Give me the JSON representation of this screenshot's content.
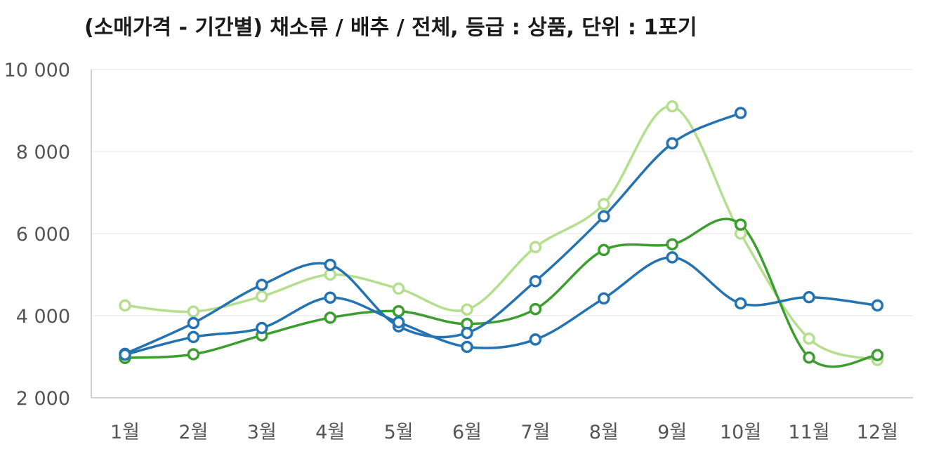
{
  "chart_data": {
    "type": "line",
    "title": "(소매가격 - 기간별) 채소류 / 배추 / 전체, 등급 : 상품, 단위 : 1포기",
    "xlabel": "",
    "ylabel": "",
    "categories": [
      "1월",
      "2월",
      "3월",
      "4월",
      "5월",
      "6월",
      "7월",
      "8월",
      "9월",
      "10월",
      "11월",
      "12월"
    ],
    "yticks": [
      "2 000",
      "4 000",
      "6 000",
      "8 000",
      "10 000"
    ],
    "ylim": [
      2000,
      10000
    ],
    "grid": true,
    "legend": "none",
    "series": [
      {
        "color": "#b5de8e",
        "values": [
          4250,
          4100,
          4470,
          5000,
          4660,
          4150,
          5670,
          6720,
          9100,
          6000,
          3440,
          2920
        ]
      },
      {
        "color": "#3b9e2e",
        "values": [
          2970,
          3060,
          3520,
          3950,
          4110,
          3800,
          4160,
          5600,
          5740,
          6220,
          2980,
          3040
        ]
      },
      {
        "color": "#2373b3",
        "values": [
          3070,
          3820,
          4750,
          5240,
          3740,
          3580,
          4840,
          6420,
          8200,
          8940,
          null,
          null
        ]
      },
      {
        "color": "#2373b3",
        "values": [
          3050,
          3480,
          3700,
          4440,
          3840,
          3240,
          3420,
          4420,
          5420,
          4300,
          4450,
          4250
        ]
      }
    ]
  }
}
